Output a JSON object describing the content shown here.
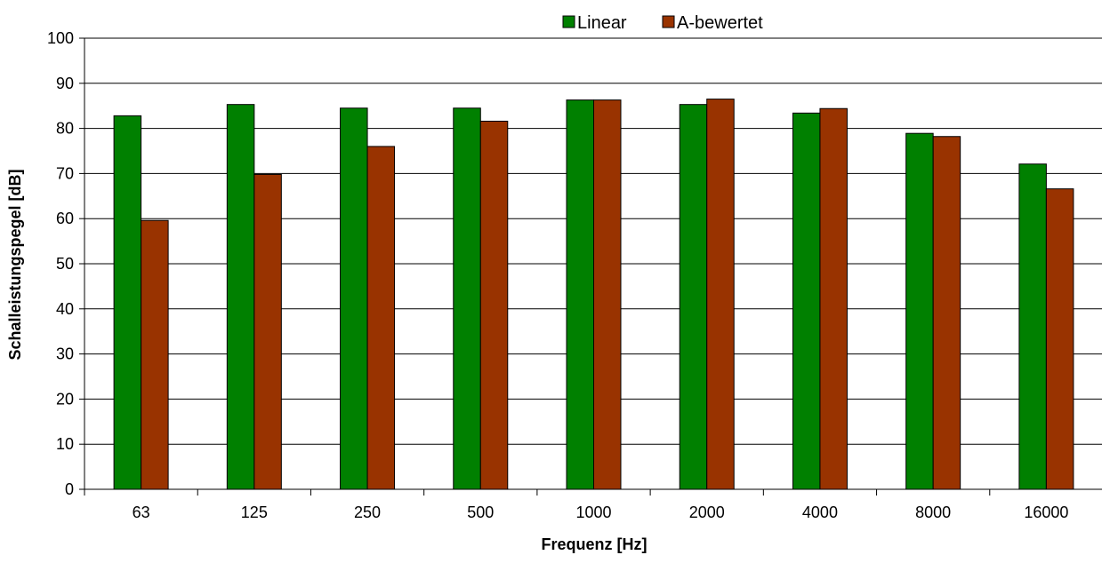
{
  "chart_data": {
    "type": "bar",
    "categories": [
      "63",
      "125",
      "250",
      "500",
      "1000",
      "2000",
      "4000",
      "8000",
      "16000"
    ],
    "series": [
      {
        "name": "Linear",
        "color": "#008000",
        "values": [
          82.8,
          85.3,
          84.5,
          84.5,
          86.3,
          85.3,
          83.4,
          78.9,
          72.1
        ]
      },
      {
        "name": "A-bewertet",
        "color": "#993300",
        "values": [
          59.6,
          69.8,
          76.0,
          81.6,
          86.3,
          86.5,
          84.4,
          78.2,
          66.6
        ]
      }
    ],
    "xlabel": "Frequenz  [Hz]",
    "ylabel": "Schalleistungspegel [dB]",
    "ylim": [
      0,
      100
    ],
    "yticks": [
      0,
      10,
      20,
      30,
      40,
      50,
      60,
      70,
      80,
      90,
      100
    ],
    "grid": "horizontal",
    "legend_position": "top"
  }
}
